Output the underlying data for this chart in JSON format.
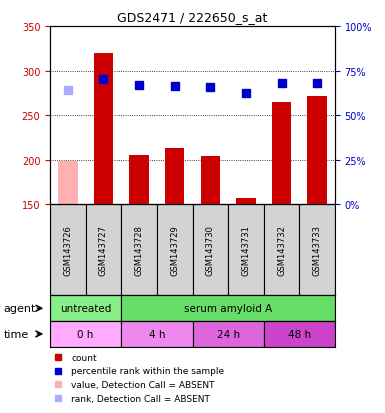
{
  "title": "GDS2471 / 222650_s_at",
  "samples": [
    "GSM143726",
    "GSM143727",
    "GSM143728",
    "GSM143729",
    "GSM143730",
    "GSM143731",
    "GSM143732",
    "GSM143733"
  ],
  "count_values": [
    199,
    320,
    205,
    213,
    204,
    157,
    265,
    271
  ],
  "count_absent": [
    true,
    false,
    false,
    false,
    false,
    false,
    false,
    false
  ],
  "rank_values": [
    278,
    290,
    284,
    283,
    281,
    275,
    286,
    286
  ],
  "rank_absent": [
    true,
    false,
    false,
    false,
    false,
    false,
    false,
    false
  ],
  "ylim_left": [
    150,
    350
  ],
  "ylim_right": [
    0,
    100
  ],
  "yticks_left": [
    150,
    200,
    250,
    300,
    350
  ],
  "yticks_right": [
    0,
    25,
    50,
    75,
    100
  ],
  "bar_color": "#cc0000",
  "bar_absent_color": "#ffb0b0",
  "rank_color": "#0000cc",
  "rank_absent_color": "#aaaaff",
  "agent_segments": [
    {
      "text": "untreated",
      "start": 0,
      "end": 2,
      "color": "#88ee88"
    },
    {
      "text": "serum amyloid A",
      "start": 2,
      "end": 8,
      "color": "#66dd66"
    }
  ],
  "time_segments": [
    {
      "text": "0 h",
      "start": 0,
      "end": 2,
      "color": "#ffaaff"
    },
    {
      "text": "4 h",
      "start": 2,
      "end": 4,
      "color": "#ee88ee"
    },
    {
      "text": "24 h",
      "start": 4,
      "end": 6,
      "color": "#dd66dd"
    },
    {
      "text": "48 h",
      "start": 6,
      "end": 8,
      "color": "#cc44cc"
    }
  ],
  "legend_items": [
    {
      "label": "count",
      "color": "#cc0000"
    },
    {
      "label": "percentile rank within the sample",
      "color": "#0000cc"
    },
    {
      "label": "value, Detection Call = ABSENT",
      "color": "#ffb0b0"
    },
    {
      "label": "rank, Detection Call = ABSENT",
      "color": "#aaaaff"
    }
  ],
  "bar_width": 0.55,
  "rank_marker_size": 6,
  "title_fontsize": 9,
  "tick_fontsize": 7,
  "label_fontsize": 7,
  "sample_fontsize": 6,
  "row_fontsize": 7.5,
  "left_tick_color": "#cc0000",
  "right_tick_color": "#0000cc",
  "label_area_color": "#d3d3d3"
}
